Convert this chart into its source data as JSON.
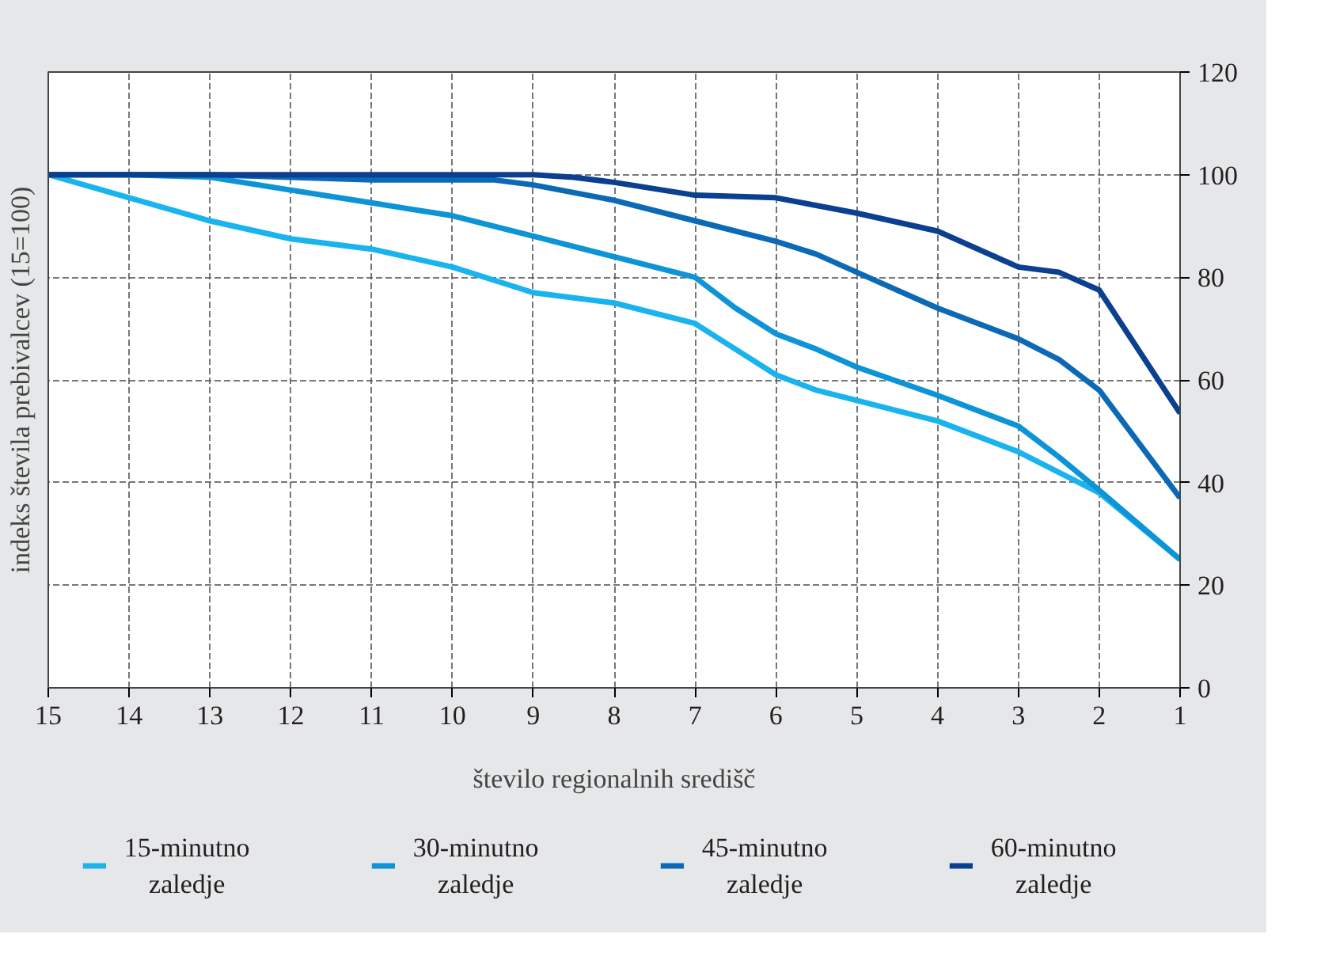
{
  "chart_data": {
    "type": "line",
    "xlabel": "število regionalnih središč",
    "ylabel": "indeks števila prebivalcev (15=100)",
    "xlim": [
      15,
      1
    ],
    "xticks": [
      15,
      14,
      13,
      12,
      11,
      10,
      9,
      8,
      7,
      6,
      5,
      4,
      3,
      2,
      1
    ],
    "ylim": [
      0,
      120
    ],
    "yticks": [
      0,
      20,
      40,
      60,
      80,
      100,
      120
    ],
    "grid": true,
    "legend": "bottom",
    "line_style": "solid",
    "series": [
      {
        "name": "15-minutno zaledje",
        "color": "#19b4ee",
        "x": [
          15,
          14,
          13,
          12,
          11,
          10,
          9,
          8,
          7,
          6.5,
          6,
          5.5,
          5,
          4,
          3,
          2,
          1
        ],
        "values": [
          100,
          95.5,
          91,
          87.5,
          85.5,
          82,
          77,
          75,
          71,
          66,
          61,
          58,
          56,
          52,
          46,
          38,
          25
        ]
      },
      {
        "name": "30-minutno zaledje",
        "color": "#0d94d6",
        "x": [
          15,
          14,
          13,
          12,
          11,
          10,
          9,
          8,
          7,
          6.5,
          6,
          5.5,
          5,
          4,
          3,
          2.5,
          2,
          1
        ],
        "values": [
          100,
          100,
          99.5,
          97,
          94.5,
          92,
          88,
          84,
          80,
          74,
          69,
          66,
          62.5,
          57,
          51,
          45,
          38.5,
          25
        ]
      },
      {
        "name": "45-minutno zaledje",
        "color": "#0b69b6",
        "x": [
          15,
          13,
          12,
          11,
          10,
          9.5,
          9,
          8,
          7,
          6,
          5.5,
          5,
          4,
          3,
          2.5,
          2,
          1
        ],
        "values": [
          100,
          100,
          99.5,
          99,
          99,
          99,
          98,
          95,
          91,
          87,
          84.5,
          81,
          74,
          68,
          64,
          58,
          37
        ]
      },
      {
        "name": "60-minutno zaledje",
        "color": "#0b3f8f",
        "x": [
          15,
          9,
          8.5,
          8,
          7,
          6,
          5,
          4,
          3,
          2.5,
          2,
          1
        ],
        "values": [
          100,
          100,
          99.5,
          98.5,
          96,
          95.5,
          92.5,
          89,
          82,
          81,
          77.5,
          53.5
        ]
      }
    ]
  }
}
